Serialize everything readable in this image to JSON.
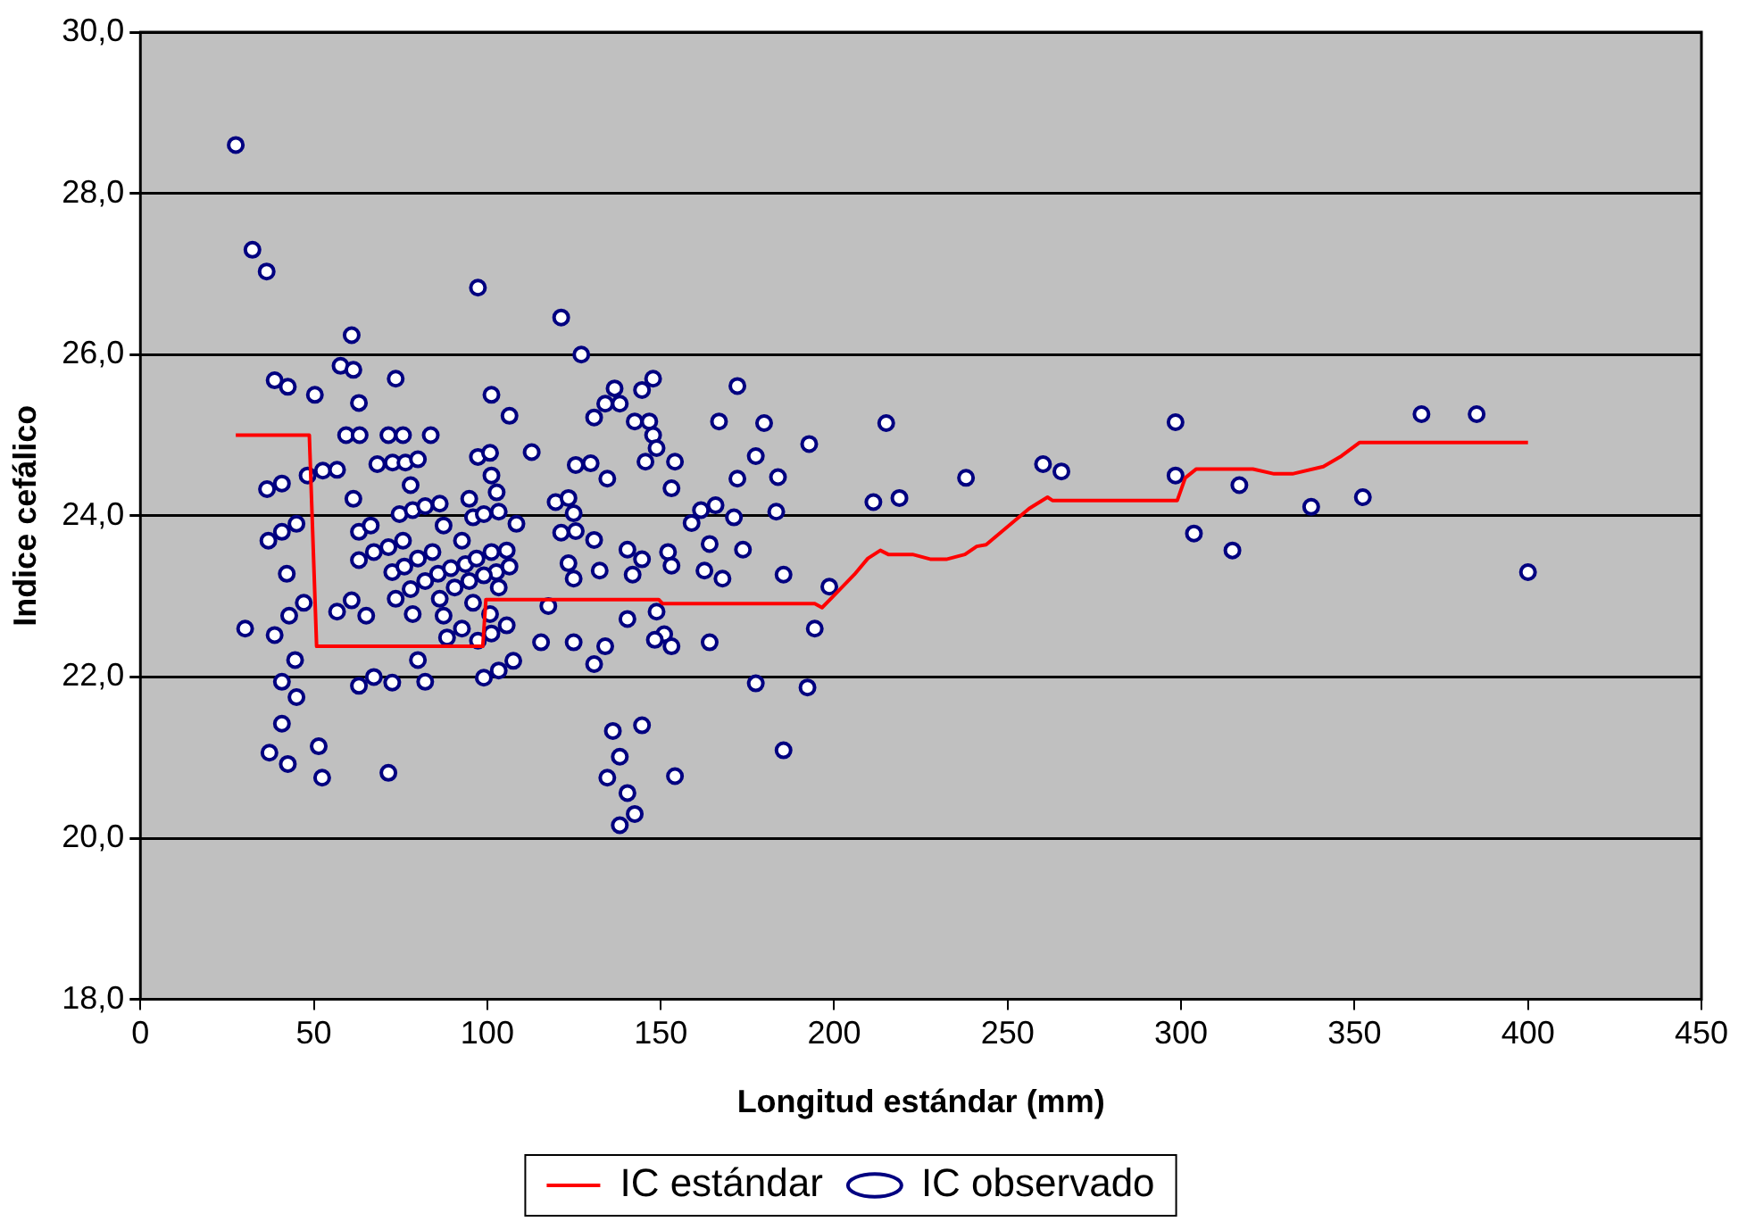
{
  "chart_data": {
    "type": "scatter",
    "xlabel": "Longitud estándar (mm)",
    "ylabel": "Indice cefálico",
    "xlim": [
      0,
      450
    ],
    "xticks": [
      0,
      50,
      100,
      150,
      200,
      250,
      300,
      350,
      400,
      450
    ],
    "ylim": [
      18,
      30
    ],
    "yticks": [
      {
        "value": 18,
        "label": "18,0"
      },
      {
        "value": 20,
        "label": "20,0"
      },
      {
        "value": 22,
        "label": "22,0"
      },
      {
        "value": 24,
        "label": "24,0"
      },
      {
        "value": 26,
        "label": "26,0"
      },
      {
        "value": 28,
        "label": "28,0"
      },
      {
        "value": 30,
        "label": "30,0"
      }
    ],
    "grid": "y",
    "legend": "bottom",
    "series": [
      {
        "name": "IC estándar",
        "type": "line",
        "color": "#ff0000",
        "marker": "none",
        "line_style": "solid",
        "x": [
          27.5,
          48.7,
          50.8,
          98.7,
          99.6,
          149.4,
          150.5,
          194.4,
          196.5,
          199.7,
          205.8,
          209.7,
          213.3,
          215.6,
          222.6,
          227.9,
          232.3,
          237.7,
          241.1,
          243.8,
          256.2,
          261.5,
          262.9,
          298.9,
          301.2,
          304.4,
          320.7,
          326.8,
          332.1,
          341.0,
          346.2,
          351.5,
          400.0
        ],
        "values": [
          25.0,
          25.0,
          22.38,
          22.38,
          22.96,
          22.96,
          22.91,
          22.91,
          22.86,
          23.0,
          23.27,
          23.47,
          23.57,
          23.52,
          23.52,
          23.46,
          23.46,
          23.52,
          23.62,
          23.64,
          24.09,
          24.23,
          24.19,
          24.19,
          24.47,
          24.58,
          24.58,
          24.52,
          24.52,
          24.61,
          24.74,
          24.91,
          24.91
        ]
      },
      {
        "name": "IC observado",
        "type": "scatter",
        "color": "#000080",
        "marker": "circle",
        "x": [
          27.5,
          32.3,
          36.4,
          97.3,
          60.9,
          57.7,
          61.4,
          38.7,
          42.5,
          50.3,
          73.6,
          63.0,
          101.2,
          106.4,
          59.3,
          63.2,
          71.5,
          75.7,
          83.7,
          68.3,
          72.7,
          76.4,
          80.0,
          52.6,
          56.7,
          48.2,
          40.8,
          36.5,
          97.3,
          100.8,
          101.2,
          77.9,
          61.4,
          102.7,
          94.8,
          74.7,
          78.5,
          82.1,
          86.3,
          95.9,
          99.0,
          103.3,
          108.4,
          45.0,
          40.8,
          36.9,
          63.0,
          66.4,
          87.4,
          92.7,
          71.5,
          75.7,
          67.3,
          63.0,
          80.0,
          84.2,
          72.6,
          76.1,
          85.8,
          89.5,
          93.7,
          96.9,
          101.2,
          105.6,
          102.6,
          106.4,
          99.0,
          42.2,
          77.9,
          82.1,
          90.6,
          94.8,
          103.3,
          73.6,
          86.3,
          95.9,
          47.1,
          42.9,
          56.7,
          60.9,
          65.1,
          78.5,
          87.4,
          100.8,
          30.2,
          38.7,
          92.7,
          88.4,
          97.3,
          101.2,
          105.6,
          44.6,
          80.0,
          40.8,
          45.0,
          67.3,
          63.0,
          72.6,
          82.1,
          99.0,
          103.3,
          107.5,
          40.8,
          37.2,
          42.5,
          51.4,
          52.4,
          71.5,
          121.3,
          127.1,
          136.7,
          134.0,
          138.2,
          144.6,
          147.8,
          130.8,
          142.5,
          146.7,
          147.8,
          148.8,
          172.1,
          166.8,
          179.8,
          215.0,
          192.8,
          112.8,
          125.5,
          129.8,
          134.6,
          145.6,
          154.1,
          153.1,
          177.4,
          172.1,
          183.8,
          119.7,
          123.4,
          124.9,
          121.3,
          125.5,
          130.8,
          158.9,
          161.6,
          165.8,
          171.1,
          183.3,
          211.3,
          218.8,
          140.4,
          144.6,
          152.1,
          153.1,
          164.1,
          173.7,
          123.4,
          124.9,
          132.4,
          141.9,
          162.6,
          167.8,
          185.4,
          198.6,
          117.6,
          148.8,
          140.4,
          194.4,
          151.0,
          148.3,
          153.1,
          115.5,
          124.9,
          134.0,
          130.8,
          164.1,
          177.4,
          192.3,
          136.2,
          144.6,
          138.2,
          134.6,
          154.1,
          140.4,
          142.5,
          138.2,
          185.4,
          238.0,
          260.2,
          265.5,
          298.4,
          298.4,
          316.8,
          303.7,
          314.8,
          337.5,
          352.4,
          369.3,
          385.2,
          400.0
        ],
        "values": [
          28.6,
          27.3,
          27.03,
          26.83,
          26.24,
          25.86,
          25.81,
          25.68,
          25.6,
          25.5,
          25.7,
          25.4,
          25.5,
          25.24,
          25.0,
          25.0,
          25.0,
          25.0,
          25.0,
          24.64,
          24.66,
          24.66,
          24.7,
          24.56,
          24.57,
          24.5,
          24.4,
          24.33,
          24.73,
          24.78,
          24.5,
          24.38,
          24.21,
          24.29,
          24.21,
          24.02,
          24.07,
          24.12,
          24.15,
          23.98,
          24.02,
          24.05,
          23.9,
          23.9,
          23.8,
          23.69,
          23.8,
          23.88,
          23.88,
          23.69,
          23.61,
          23.69,
          23.55,
          23.45,
          23.47,
          23.55,
          23.3,
          23.37,
          23.28,
          23.35,
          23.4,
          23.47,
          23.55,
          23.57,
          23.3,
          23.37,
          23.26,
          23.28,
          23.09,
          23.19,
          23.11,
          23.19,
          23.11,
          22.97,
          22.97,
          22.92,
          22.92,
          22.76,
          22.81,
          22.95,
          22.76,
          22.78,
          22.76,
          22.78,
          22.6,
          22.52,
          22.6,
          22.49,
          22.45,
          22.54,
          22.64,
          22.21,
          22.21,
          21.94,
          21.75,
          22.0,
          21.89,
          21.93,
          21.94,
          21.99,
          22.08,
          22.2,
          21.42,
          21.06,
          20.92,
          21.14,
          20.75,
          20.81,
          26.46,
          26.0,
          25.58,
          25.39,
          25.39,
          25.56,
          25.7,
          25.22,
          25.17,
          25.17,
          25.0,
          24.84,
          25.61,
          25.17,
          25.15,
          25.15,
          24.89,
          24.79,
          24.63,
          24.65,
          24.46,
          24.67,
          24.67,
          24.34,
          24.74,
          24.46,
          24.48,
          24.17,
          24.22,
          24.03,
          23.79,
          23.81,
          23.7,
          23.91,
          24.07,
          24.13,
          23.98,
          24.05,
          24.17,
          24.22,
          23.58,
          23.46,
          23.55,
          23.38,
          23.65,
          23.58,
          23.41,
          23.22,
          23.32,
          23.27,
          23.32,
          23.22,
          23.27,
          23.12,
          22.88,
          22.81,
          22.72,
          22.6,
          22.53,
          22.46,
          22.38,
          22.43,
          22.43,
          22.38,
          22.16,
          22.43,
          21.92,
          21.87,
          21.33,
          21.4,
          21.01,
          20.75,
          20.77,
          20.56,
          20.3,
          20.16,
          21.09,
          24.47,
          24.64,
          24.55,
          25.16,
          24.5,
          24.38,
          23.78,
          23.57,
          24.11,
          24.23,
          25.26,
          25.26,
          23.3
        ]
      }
    ]
  }
}
